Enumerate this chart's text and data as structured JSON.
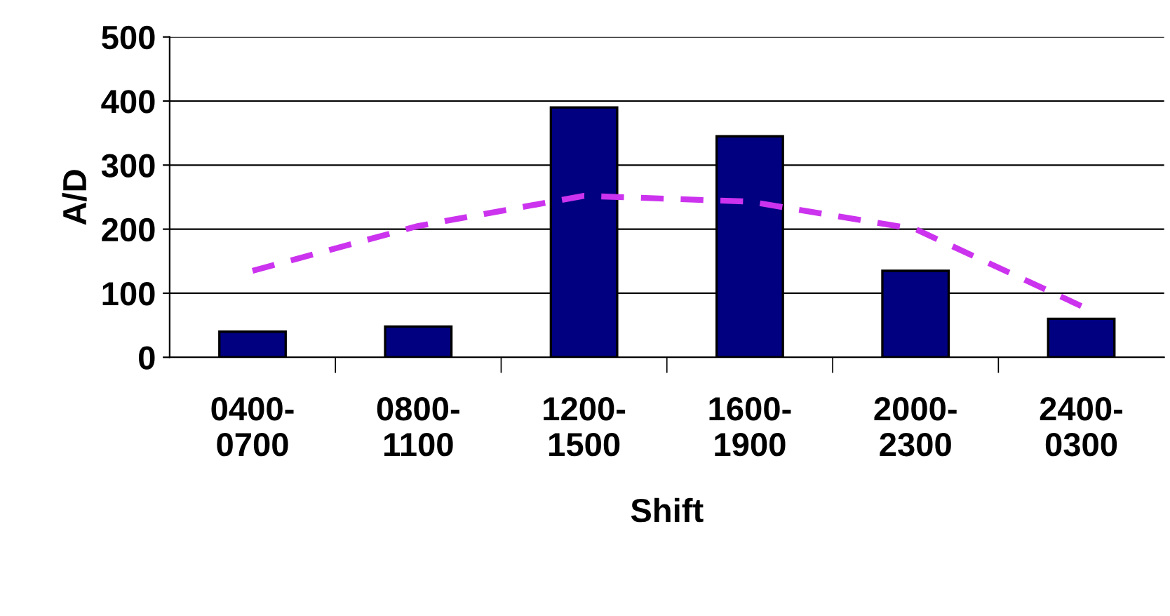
{
  "chart_data": {
    "type": "bar",
    "xlabel": "Shift",
    "ylabel": "A/D",
    "categories": [
      "0400-\n0700",
      "0800-\n1100",
      "1200-\n1500",
      "1600-\n1900",
      "2000-\n2300",
      "2400-\n0300"
    ],
    "series": [
      {
        "color": "#000080",
        "values": [
          40,
          48,
          390,
          345,
          135,
          60
        ]
      },
      {
        "type": "line",
        "color": "#cc33ee",
        "line_style": "dashed",
        "values": [
          135,
          205,
          252,
          243,
          200,
          80
        ]
      }
    ],
    "ylim": [
      0,
      500
    ],
    "yticks": [
      0,
      100,
      200,
      300,
      400,
      500
    ],
    "grid": "y",
    "legend": false
  }
}
